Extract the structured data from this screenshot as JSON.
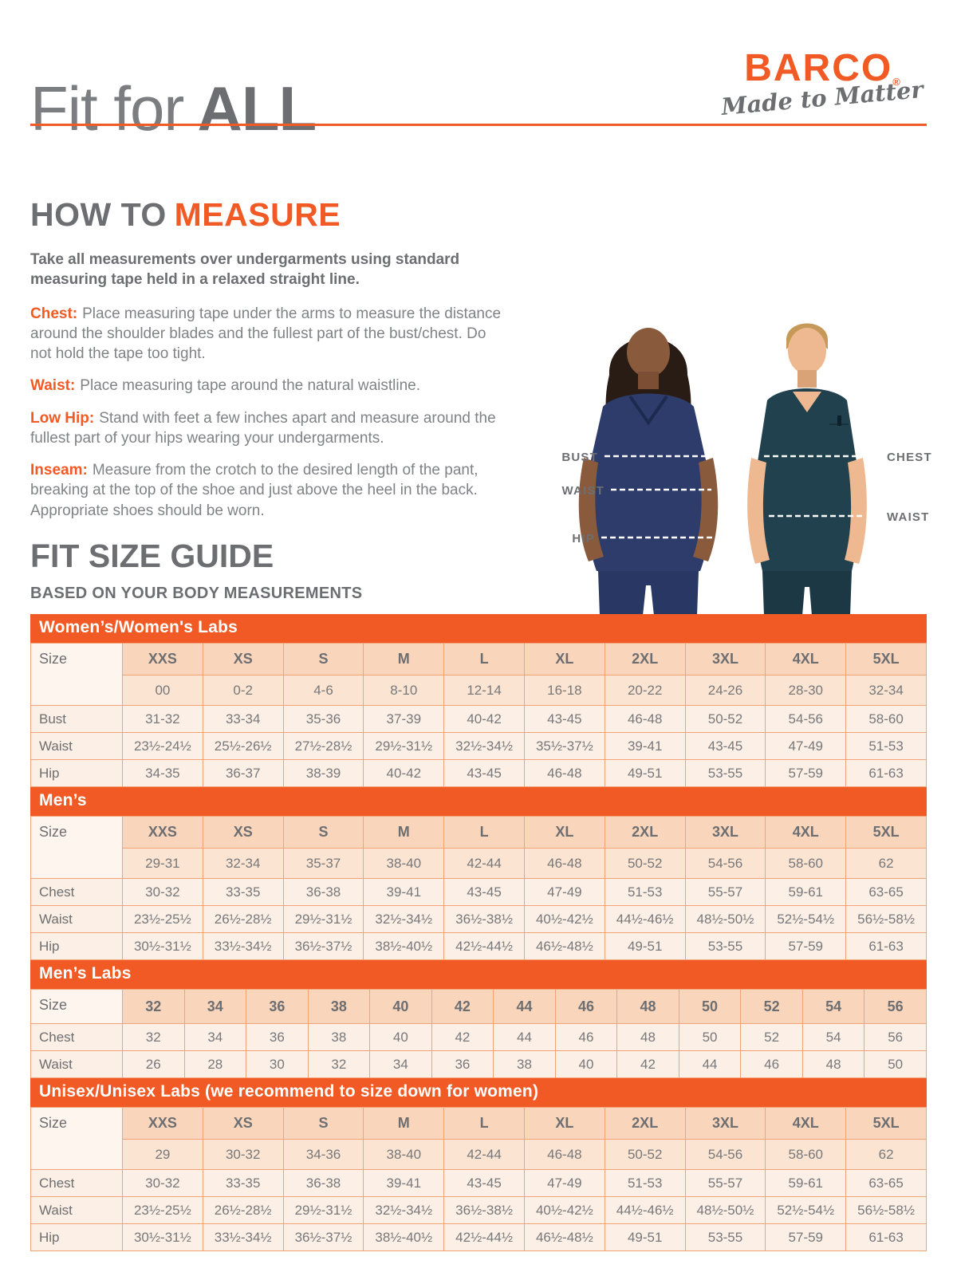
{
  "header": {
    "title_light": "Fit for",
    "title_bold": "ALL",
    "brand": "BARCO",
    "brand_reg": "®",
    "brand_tagline": "Made to Matter"
  },
  "how_to_measure": {
    "title_gray": "HOW TO",
    "title_orange": "MEASURE",
    "intro": "Take all measurements over undergarments using standard measuring tape held in a relaxed straight line.",
    "items": [
      {
        "label": "Chest:",
        "text": "Place measuring tape under the arms to measure the distance around the shoulder blades and the fullest part of the bust/chest. Do not hold the tape too tight."
      },
      {
        "label": "Waist:",
        "text": "Place measuring tape around the natural waistline."
      },
      {
        "label": "Low Hip:",
        "text": "Stand with feet a few inches apart and measure around the fullest part of your hips wearing your undergarments."
      },
      {
        "label": "Inseam:",
        "text": "Measure from the crotch to the desired length of the pant, breaking at the top of the shoe and just above the heel in the back. Appropriate shoes should be worn."
      }
    ]
  },
  "figure": {
    "labels_left": [
      "BUST",
      "WAIST",
      "HIP"
    ],
    "labels_right": [
      "CHEST",
      "WAIST"
    ]
  },
  "size_guide": {
    "title": "FIT SIZE GUIDE",
    "subtitle": "BASED ON YOUR BODY MEASUREMENTS",
    "size_column_label": "Size",
    "tables": [
      {
        "title": "Women’s/Women's Labs",
        "sizes": [
          "XXS",
          "XS",
          "S",
          "M",
          "L",
          "XL",
          "2XL",
          "3XL",
          "4XL",
          "5XL"
        ],
        "numeric": [
          "00",
          "0-2",
          "4-6",
          "8-10",
          "12-14",
          "16-18",
          "20-22",
          "24-26",
          "28-30",
          "32-34"
        ],
        "rows": [
          {
            "label": "Bust",
            "values": [
              "31-32",
              "33-34",
              "35-36",
              "37-39",
              "40-42",
              "43-45",
              "46-48",
              "50-52",
              "54-56",
              "58-60"
            ]
          },
          {
            "label": "Waist",
            "values": [
              "23½-24½",
              "25½-26½",
              "27½-28½",
              "29½-31½",
              "32½-34½",
              "35½-37½",
              "39-41",
              "43-45",
              "47-49",
              "51-53"
            ]
          },
          {
            "label": "Hip",
            "values": [
              "34-35",
              "36-37",
              "38-39",
              "40-42",
              "43-45",
              "46-48",
              "49-51",
              "53-55",
              "57-59",
              "61-63"
            ]
          }
        ]
      },
      {
        "title": "Men’s",
        "sizes": [
          "XXS",
          "XS",
          "S",
          "M",
          "L",
          "XL",
          "2XL",
          "3XL",
          "4XL",
          "5XL"
        ],
        "numeric": [
          "29-31",
          "32-34",
          "35-37",
          "38-40",
          "42-44",
          "46-48",
          "50-52",
          "54-56",
          "58-60",
          "62"
        ],
        "rows": [
          {
            "label": "Chest",
            "values": [
              "30-32",
              "33-35",
              "36-38",
              "39-41",
              "43-45",
              "47-49",
              "51-53",
              "55-57",
              "59-61",
              "63-65"
            ]
          },
          {
            "label": "Waist",
            "values": [
              "23½-25½",
              "26½-28½",
              "29½-31½",
              "32½-34½",
              "36½-38½",
              "40½-42½",
              "44½-46½",
              "48½-50½",
              "52½-54½",
              "56½-58½"
            ]
          },
          {
            "label": "Hip",
            "values": [
              "30½-31½",
              "33½-34½",
              "36½-37½",
              "38½-40½",
              "42½-44½",
              "46½-48½",
              "49-51",
              "53-55",
              "57-59",
              "61-63"
            ]
          }
        ]
      },
      {
        "title": "Men’s Labs",
        "sizes": [
          "32",
          "34",
          "36",
          "38",
          "40",
          "42",
          "44",
          "46",
          "48",
          "50",
          "52",
          "54",
          "56"
        ],
        "numeric": null,
        "rows": [
          {
            "label": "Chest",
            "values": [
              "32",
              "34",
              "36",
              "38",
              "40",
              "42",
              "44",
              "46",
              "48",
              "50",
              "52",
              "54",
              "56"
            ]
          },
          {
            "label": "Waist",
            "values": [
              "26",
              "28",
              "30",
              "32",
              "34",
              "36",
              "38",
              "40",
              "42",
              "44",
              "46",
              "48",
              "50"
            ]
          }
        ]
      },
      {
        "title": "Unisex/Unisex Labs (we recommend to size down for women)",
        "sizes": [
          "XXS",
          "XS",
          "S",
          "M",
          "L",
          "XL",
          "2XL",
          "3XL",
          "4XL",
          "5XL"
        ],
        "numeric": [
          "29",
          "30-32",
          "34-36",
          "38-40",
          "42-44",
          "46-48",
          "50-52",
          "54-56",
          "58-60",
          "62"
        ],
        "rows": [
          {
            "label": "Chest",
            "values": [
              "30-32",
              "33-35",
              "36-38",
              "39-41",
              "43-45",
              "47-49",
              "51-53",
              "55-57",
              "59-61",
              "63-65"
            ]
          },
          {
            "label": "Waist",
            "values": [
              "23½-25½",
              "26½-28½",
              "29½-31½",
              "32½-34½",
              "36½-38½",
              "40½-42½",
              "44½-46½",
              "48½-50½",
              "52½-54½",
              "56½-58½"
            ]
          },
          {
            "label": "Hip",
            "values": [
              "30½-31½",
              "33½-34½",
              "36½-37½",
              "38½-40½",
              "42½-44½",
              "46½-48½",
              "49-51",
              "53-55",
              "57-59",
              "61-63"
            ]
          }
        ]
      }
    ]
  },
  "colors": {
    "accent_orange": "#F15A24",
    "heading_gray": "#6D6E71",
    "body_gray": "#808285",
    "table_border": "#F2A376",
    "header_cell_bg": "#F9D6BB",
    "numeric_cell_bg": "#FBE4D1",
    "data_cell_bg": "#FCEFE5",
    "corner_cell_bg": "#FEF6EE",
    "female_scrub_navy": "#2D3C6A",
    "male_scrub_teal": "#21414E"
  }
}
